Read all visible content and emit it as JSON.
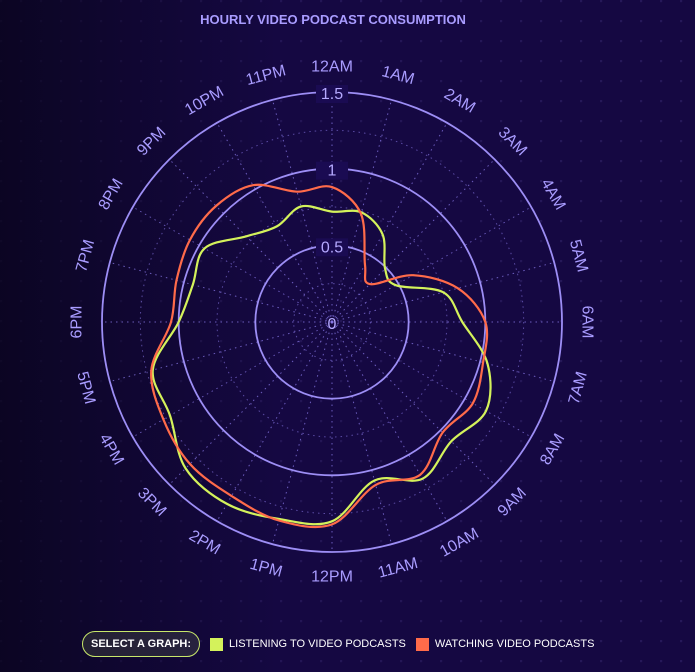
{
  "chart_data": {
    "type": "radar",
    "title": "HOURLY VIDEO PODCAST CONSUMPTION",
    "categories": [
      "1AM",
      "2AM",
      "3AM",
      "4AM",
      "5AM",
      "6AM",
      "7AM",
      "8AM",
      "9AM",
      "10AM",
      "11AM",
      "12PM",
      "1PM",
      "2PM",
      "3PM",
      "4PM",
      "5PM",
      "6PM",
      "7PM",
      "8PM",
      "9PM",
      "10PM",
      "11PM",
      "12AM"
    ],
    "radial_ticks": [
      "0",
      "0.5",
      "1",
      "1.5"
    ],
    "rlim": [
      0,
      1.5
    ],
    "grid": true,
    "legend_position": "bottom",
    "series": [
      {
        "name": "LISTENING TO VIDEO PODCASTS",
        "color": "#d4f25b",
        "values": [
          0.74,
          0.66,
          0.49,
          0.48,
          0.75,
          0.85,
          1.05,
          1.16,
          1.1,
          1.18,
          1.07,
          1.3,
          1.33,
          1.37,
          1.35,
          1.22,
          1.21,
          1.0,
          0.94,
          0.96,
          0.79,
          0.72,
          0.78,
          0.72
        ]
      },
      {
        "name": "WATCHING VIDEO PODCASTS",
        "color": "#ff6b4a",
        "values": [
          0.73,
          0.43,
          0.35,
          0.61,
          0.85,
          1.0,
          1.02,
          1.06,
          1.02,
          1.15,
          1.1,
          1.32,
          1.34,
          1.31,
          1.31,
          1.27,
          1.22,
          1.05,
          1.05,
          1.07,
          1.07,
          1.03,
          0.88,
          0.88
        ]
      }
    ]
  },
  "controls": {
    "select_label": "SELECT A GRAPH:",
    "legend": [
      {
        "label": "LISTENING TO VIDEO PODCASTS",
        "color": "#d4f25b"
      },
      {
        "label": "WATCHING VIDEO PODCASTS",
        "color": "#ff6b4a"
      }
    ]
  }
}
